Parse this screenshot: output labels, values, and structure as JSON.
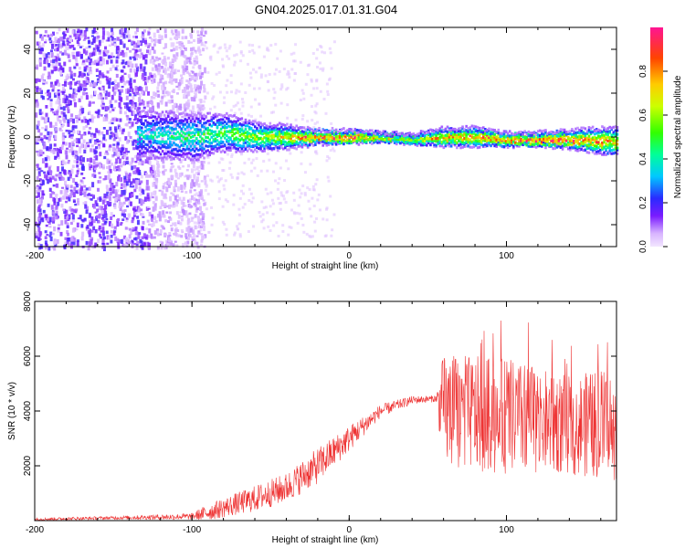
{
  "title": "GN04.2025.017.01.31.G04",
  "chart_data": [
    {
      "type": "heatmap",
      "xlabel": "Height of straight line (km)",
      "ylabel": "Frequency (Hz)",
      "xlim": [
        -200,
        170
      ],
      "ylim": [
        -50,
        50
      ],
      "x_ticks": [
        -200,
        -100,
        0,
        100
      ],
      "y_ticks": [
        -40,
        -20,
        0,
        20,
        40
      ],
      "colorbar": {
        "label": "Normalized spectral amplitude",
        "range": [
          0,
          1
        ],
        "ticks": [
          0.0,
          0.2,
          0.4,
          0.6,
          0.8
        ]
      },
      "noise_region": {
        "x_from": -200,
        "x_to": -100,
        "y_from": -50,
        "y_to": 50
      },
      "ridge": [
        {
          "x": -130,
          "y": 1,
          "width": 10,
          "amp": 0.3
        },
        {
          "x": -100,
          "y": 0,
          "width": 10,
          "amp": 0.4
        },
        {
          "x": -80,
          "y": 2,
          "width": 8,
          "amp": 0.45
        },
        {
          "x": -60,
          "y": 0,
          "width": 6,
          "amp": 0.55
        },
        {
          "x": -40,
          "y": 0,
          "width": 5,
          "amp": 0.65
        },
        {
          "x": -20,
          "y": 0,
          "width": 3,
          "amp": 0.9
        },
        {
          "x": 0,
          "y": 0,
          "width": 3,
          "amp": 0.85
        },
        {
          "x": 20,
          "y": 0,
          "width": 2,
          "amp": 0.7
        },
        {
          "x": 40,
          "y": -1,
          "width": 2,
          "amp": 0.65
        },
        {
          "x": 60,
          "y": 0,
          "width": 4,
          "amp": 0.75
        },
        {
          "x": 80,
          "y": 0,
          "width": 4,
          "amp": 0.8
        },
        {
          "x": 100,
          "y": -1,
          "width": 3,
          "amp": 0.85
        },
        {
          "x": 120,
          "y": -1,
          "width": 3,
          "amp": 0.9
        },
        {
          "x": 140,
          "y": -1,
          "width": 4,
          "amp": 0.85
        },
        {
          "x": 165,
          "y": -2,
          "width": 6,
          "amp": 0.75
        }
      ]
    },
    {
      "type": "line",
      "xlabel": "Height of straight line (km)",
      "ylabel": "SNR (10 * v/v)",
      "xlim": [
        -200,
        170
      ],
      "ylim": [
        0,
        8000
      ],
      "x_ticks": [
        -200,
        -100,
        0,
        100
      ],
      "y_ticks": [
        2000,
        4000,
        6000,
        8000
      ],
      "color": "#ee3333",
      "envelope": [
        {
          "x": -200,
          "mean": 50,
          "spread": 80
        },
        {
          "x": -150,
          "mean": 100,
          "spread": 100
        },
        {
          "x": -100,
          "mean": 150,
          "spread": 200
        },
        {
          "x": -90,
          "mean": 300,
          "spread": 500
        },
        {
          "x": -60,
          "mean": 800,
          "spread": 800
        },
        {
          "x": -40,
          "mean": 1200,
          "spread": 900
        },
        {
          "x": -20,
          "mean": 2000,
          "spread": 1100
        },
        {
          "x": 0,
          "mean": 3000,
          "spread": 800
        },
        {
          "x": 20,
          "mean": 4000,
          "spread": 400
        },
        {
          "x": 40,
          "mean": 4400,
          "spread": 250
        },
        {
          "x": 55,
          "mean": 4450,
          "spread": 200
        },
        {
          "x": 60,
          "mean": 4000,
          "spread": 3500
        },
        {
          "x": 100,
          "mean": 3800,
          "spread": 3500
        },
        {
          "x": 140,
          "mean": 3500,
          "spread": 3000
        },
        {
          "x": 170,
          "mean": 3500,
          "spread": 3500
        }
      ]
    }
  ]
}
